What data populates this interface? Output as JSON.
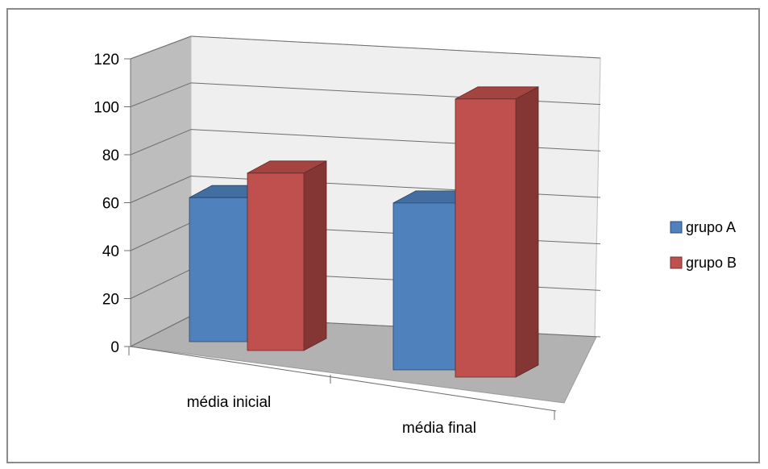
{
  "chart_data": {
    "type": "bar",
    "title": "",
    "xlabel": "",
    "ylabel": "",
    "categories": [
      "média inicial",
      "média final"
    ],
    "series": [
      {
        "name": "grupo A",
        "values": [
          62,
          67
        ],
        "color": "#4f81bd"
      },
      {
        "name": "grupo B",
        "values": [
          74,
          109
        ],
        "color": "#c0504d"
      }
    ],
    "ylim": [
      0,
      120
    ],
    "yticks": [
      "0",
      "20",
      "40",
      "60",
      "80",
      "100",
      "120"
    ],
    "grid": true,
    "legend_position": "right",
    "style": "3d-clustered-column"
  }
}
